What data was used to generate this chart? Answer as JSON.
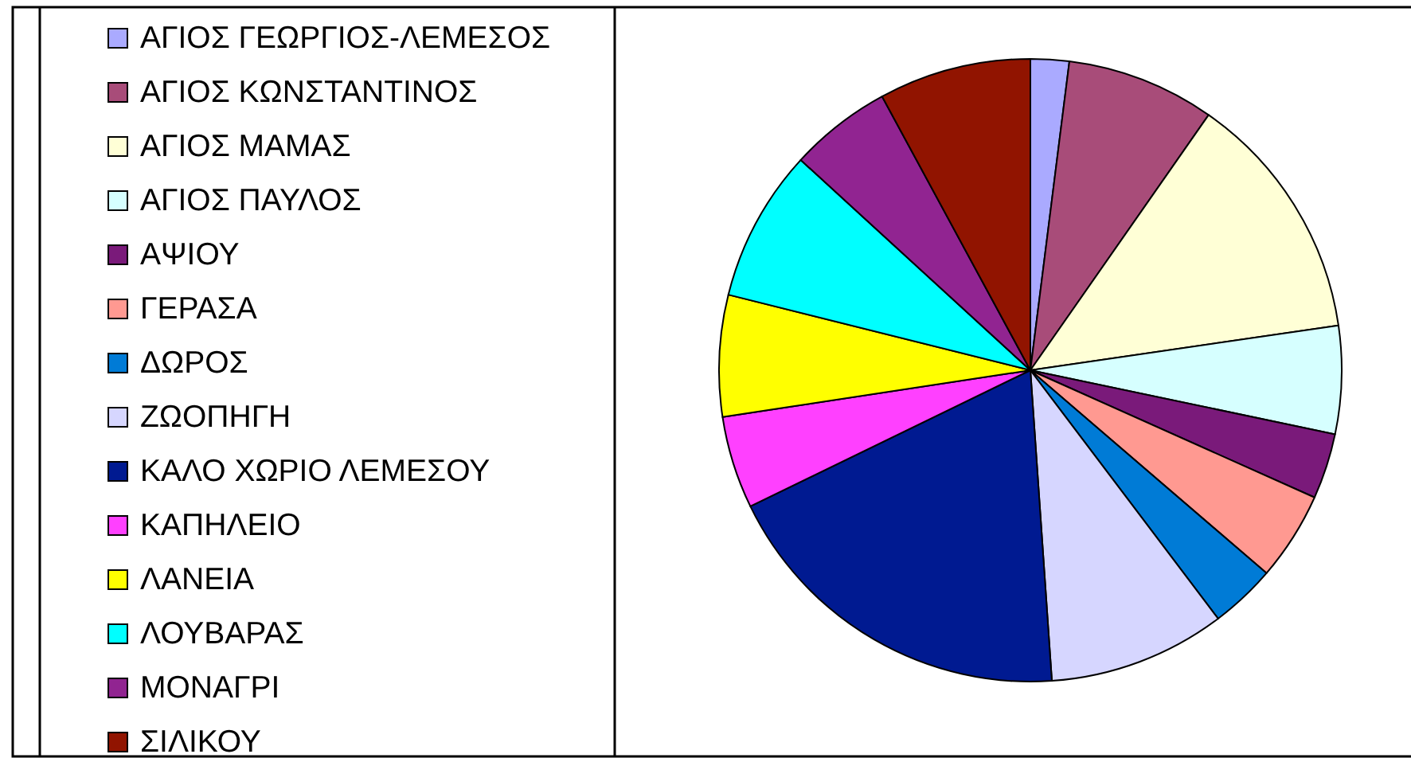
{
  "chart_data": {
    "type": "pie",
    "categories": [
      "ΑΓΙΟΣ ΓΕΩΡΓΙΟΣ-ΛΕΜΕΣΟΣ",
      "ΑΓΙΟΣ ΚΩΝΣΤΑΝΤΙΝΟΣ",
      "ΑΓΙΟΣ ΜΑΜΑΣ",
      "ΑΓΙΟΣ ΠΑΥΛΟΣ",
      "ΑΨΙΟΥ",
      "ΓΕΡΑΣΑ",
      "ΔΩΡΟΣ",
      "ΖΩΟΠΗΓΗ",
      "ΚΑΛΟ ΧΩΡΙΟ ΛΕΜΕΣΟΥ",
      "ΚΑΠΗΛΕΙΟ",
      "ΛΑΝΕΙΑ",
      "ΛΟΥΒΑΡΑΣ",
      "ΜΟΝΑΓΡΙ",
      "ΣΙΛΙΚΟΥ"
    ],
    "values": [
      2.0,
      7.7,
      13.0,
      5.6,
      3.4,
      4.6,
      3.4,
      9.2,
      18.9,
      4.8,
      6.3,
      7.9,
      5.3,
      7.9
    ],
    "colors": [
      "#aaaaff",
      "#a84c79",
      "#ffffd6",
      "#d6ffff",
      "#7a1a7a",
      "#ff9991",
      "#007bd6",
      "#d6d6ff",
      "#001a91",
      "#ff40ff",
      "#ffff00",
      "#00ffff",
      "#912491",
      "#911400"
    ],
    "legend": "left"
  }
}
